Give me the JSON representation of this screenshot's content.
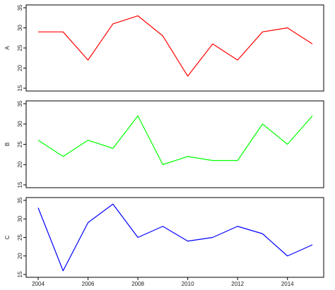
{
  "chart_data": {
    "type": "line",
    "x": [
      2004,
      2005,
      2006,
      2007,
      2008,
      2009,
      2010,
      2011,
      2012,
      2013,
      2014,
      2015
    ],
    "x_ticks": [
      "2004",
      "2006",
      "2008",
      "2010",
      "2012",
      "2014"
    ],
    "xlabel": "",
    "grid": false,
    "panels": [
      {
        "ylabel": "A",
        "color": "#ff0000",
        "ylim": [
          15,
          35
        ],
        "y_ticks": [
          "15",
          "20",
          "25",
          "30",
          "35"
        ],
        "values": [
          29,
          29,
          22,
          31,
          33,
          28,
          18,
          26,
          22,
          29,
          30,
          26
        ]
      },
      {
        "ylabel": "B",
        "color": "#00ff00",
        "ylim": [
          15,
          35
        ],
        "y_ticks": [
          "15",
          "20",
          "25",
          "30",
          "35"
        ],
        "values": [
          26,
          22,
          26,
          24,
          32,
          20,
          22,
          21,
          21,
          30,
          25,
          32
        ]
      },
      {
        "ylabel": "C",
        "color": "#0000ff",
        "ylim": [
          15,
          35
        ],
        "y_ticks": [
          "15",
          "20",
          "25",
          "30",
          "35"
        ],
        "values": [
          33,
          16,
          29,
          34,
          25,
          28,
          24,
          25,
          28,
          26,
          20,
          23
        ]
      }
    ]
  }
}
